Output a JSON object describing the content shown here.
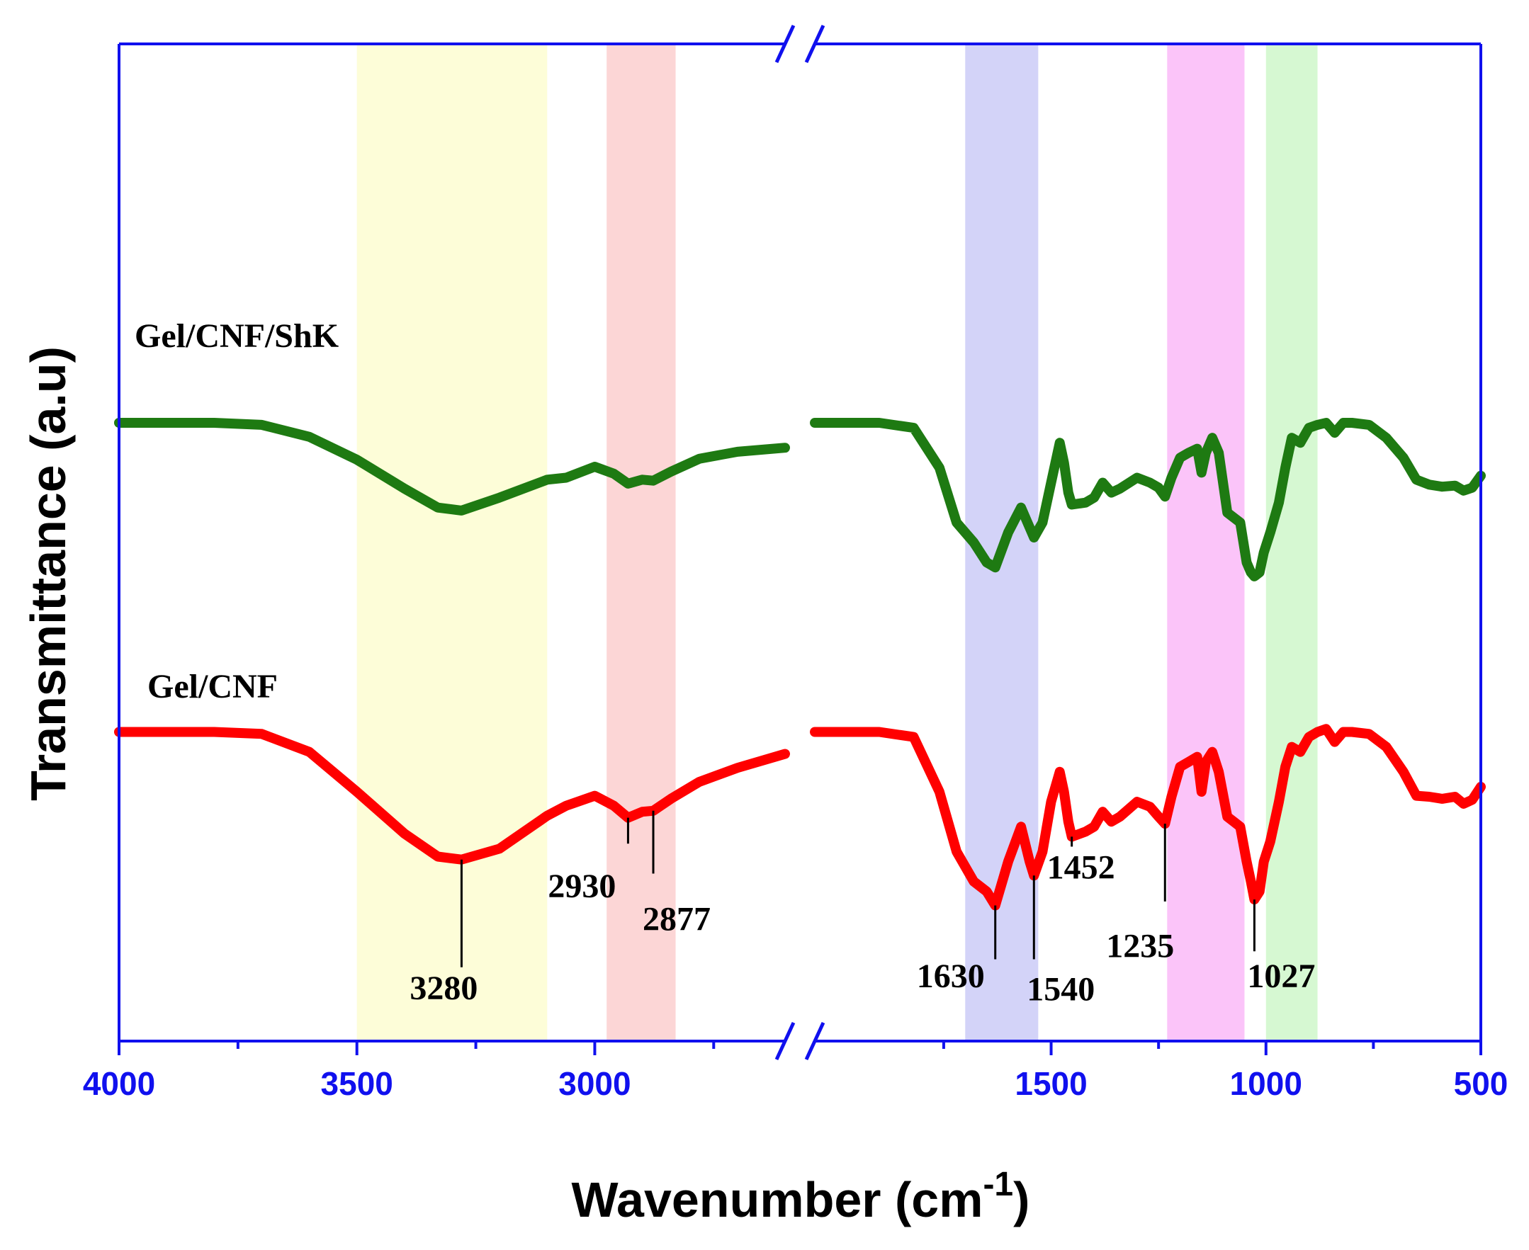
{
  "chart_data": {
    "type": "line",
    "title": "",
    "xlabel": "Wavenumber (cm",
    "xlabel_sup": "-1",
    "xlabel_close": ")",
    "ylabel": "Transmittance (a.u)",
    "x_reversed": true,
    "x_broken": true,
    "x_segments": [
      {
        "range": [
          4000,
          2600
        ],
        "ticks": [
          4000,
          3500,
          3000
        ],
        "minor_ticks": [
          3750,
          3250,
          2750
        ]
      },
      {
        "range": [
          2050,
          500
        ],
        "ticks": [
          1500,
          1000,
          500
        ],
        "minor_ticks": [
          1750,
          1250,
          750
        ]
      }
    ],
    "tick_labels": [
      "4000",
      "3500",
      "3000",
      "1500",
      "1000",
      "500"
    ],
    "y_range": [
      0,
      100
    ],
    "colors": {
      "axis": "#1010ee",
      "Gel/CNF/ShK": "#1e7a12",
      "Gel/CNF": "#ff0000"
    },
    "bands": [
      {
        "from": 3500,
        "to": 3100,
        "color": "#fdfdd8"
      },
      {
        "from": 2975,
        "to": 2830,
        "color": "#fcd6d6"
      },
      {
        "from": 1700,
        "to": 1530,
        "color": "#d3d3f8"
      },
      {
        "from": 1230,
        "to": 1050,
        "color": "#fbc4f9"
      },
      {
        "from": 1000,
        "to": 880,
        "color": "#d6f8d2"
      }
    ],
    "series": [
      {
        "name": "Gel/CNF/ShK",
        "label": "Gel/CNF/ShK",
        "segments": [
          [
            [
              4000,
              62
            ],
            [
              3900,
              62
            ],
            [
              3800,
              62
            ],
            [
              3700,
              61.8
            ],
            [
              3600,
              60.6
            ],
            [
              3500,
              58.3
            ],
            [
              3400,
              55.4
            ],
            [
              3330,
              53.5
            ],
            [
              3280,
              53.2
            ],
            [
              3200,
              54.5
            ],
            [
              3100,
              56.3
            ],
            [
              3060,
              56.5
            ],
            [
              3000,
              57.6
            ],
            [
              2960,
              56.9
            ],
            [
              2930,
              55.9
            ],
            [
              2900,
              56.3
            ],
            [
              2877,
              56.2
            ],
            [
              2840,
              57.1
            ],
            [
              2780,
              58.4
            ],
            [
              2700,
              59.1
            ],
            [
              2600,
              59.5
            ]
          ],
          [
            [
              2050,
              62
            ],
            [
              1900,
              62
            ],
            [
              1820,
              61.5
            ],
            [
              1760,
              57.5
            ],
            [
              1720,
              52
            ],
            [
              1680,
              50
            ],
            [
              1650,
              48
            ],
            [
              1630,
              47.5
            ],
            [
              1600,
              51
            ],
            [
              1570,
              53.5
            ],
            [
              1550,
              51.5
            ],
            [
              1540,
              50.5
            ],
            [
              1520,
              52
            ],
            [
              1500,
              56
            ],
            [
              1480,
              60
            ],
            [
              1470,
              58
            ],
            [
              1460,
              55
            ],
            [
              1452,
              53.8
            ],
            [
              1420,
              54
            ],
            [
              1400,
              54.5
            ],
            [
              1380,
              56
            ],
            [
              1360,
              55
            ],
            [
              1340,
              55.4
            ],
            [
              1300,
              56.5
            ],
            [
              1270,
              56
            ],
            [
              1250,
              55.5
            ],
            [
              1235,
              54.6
            ],
            [
              1220,
              56.5
            ],
            [
              1200,
              58.5
            ],
            [
              1180,
              59
            ],
            [
              1160,
              59.4
            ],
            [
              1150,
              57
            ],
            [
              1140,
              59
            ],
            [
              1125,
              60.5
            ],
            [
              1110,
              59
            ],
            [
              1090,
              53
            ],
            [
              1075,
              52.5
            ],
            [
              1060,
              52
            ],
            [
              1045,
              48
            ],
            [
              1035,
              47
            ],
            [
              1027,
              46.6
            ],
            [
              1015,
              47
            ],
            [
              1005,
              49
            ],
            [
              990,
              51
            ],
            [
              970,
              54
            ],
            [
              955,
              57.5
            ],
            [
              940,
              60.5
            ],
            [
              920,
              60
            ],
            [
              900,
              61.5
            ],
            [
              880,
              61.8
            ],
            [
              860,
              62
            ],
            [
              840,
              61
            ],
            [
              820,
              62
            ],
            [
              800,
              62
            ],
            [
              760,
              61.8
            ],
            [
              720,
              60.5
            ],
            [
              680,
              58.5
            ],
            [
              650,
              56.3
            ],
            [
              620,
              55.8
            ],
            [
              590,
              55.6
            ],
            [
              560,
              55.7
            ],
            [
              540,
              55.2
            ],
            [
              520,
              55.5
            ],
            [
              500,
              56.7
            ]
          ]
        ]
      },
      {
        "name": "Gel/CNF",
        "label": "Gel/CNF",
        "segments": [
          [
            [
              4000,
              31
            ],
            [
              3900,
              31
            ],
            [
              3800,
              31
            ],
            [
              3700,
              30.8
            ],
            [
              3600,
              29
            ],
            [
              3500,
              25
            ],
            [
              3400,
              20.8
            ],
            [
              3330,
              18.5
            ],
            [
              3280,
              18.2
            ],
            [
              3200,
              19.3
            ],
            [
              3100,
              22.6
            ],
            [
              3060,
              23.6
            ],
            [
              3000,
              24.6
            ],
            [
              2960,
              23.6
            ],
            [
              2930,
              22.4
            ],
            [
              2900,
              23
            ],
            [
              2877,
              23.1
            ],
            [
              2840,
              24.3
            ],
            [
              2780,
              26
            ],
            [
              2700,
              27.4
            ],
            [
              2600,
              28.8
            ]
          ],
          [
            [
              2050,
              31
            ],
            [
              1900,
              31
            ],
            [
              1820,
              30.5
            ],
            [
              1760,
              25
            ],
            [
              1720,
              19
            ],
            [
              1680,
              16
            ],
            [
              1650,
              15
            ],
            [
              1630,
              13.6
            ],
            [
              1600,
              18
            ],
            [
              1570,
              21.5
            ],
            [
              1550,
              18
            ],
            [
              1540,
              16.6
            ],
            [
              1520,
              19
            ],
            [
              1500,
              24
            ],
            [
              1480,
              27
            ],
            [
              1470,
              25
            ],
            [
              1460,
              22
            ],
            [
              1452,
              20.5
            ],
            [
              1420,
              21
            ],
            [
              1400,
              21.5
            ],
            [
              1380,
              23
            ],
            [
              1360,
              22
            ],
            [
              1340,
              22.5
            ],
            [
              1300,
              24
            ],
            [
              1270,
              23.5
            ],
            [
              1250,
              22.5
            ],
            [
              1235,
              21.8
            ],
            [
              1220,
              24.5
            ],
            [
              1200,
              27.5
            ],
            [
              1180,
              28
            ],
            [
              1160,
              28.5
            ],
            [
              1150,
              25
            ],
            [
              1140,
              28
            ],
            [
              1125,
              29
            ],
            [
              1110,
              27
            ],
            [
              1090,
              22.5
            ],
            [
              1075,
              22
            ],
            [
              1060,
              21.5
            ],
            [
              1045,
              18
            ],
            [
              1035,
              16
            ],
            [
              1027,
              14.2
            ],
            [
              1015,
              15
            ],
            [
              1005,
              18
            ],
            [
              990,
              20
            ],
            [
              970,
              24
            ],
            [
              955,
              27.5
            ],
            [
              940,
              29.5
            ],
            [
              920,
              29
            ],
            [
              900,
              30.5
            ],
            [
              880,
              31
            ],
            [
              860,
              31.3
            ],
            [
              840,
              30
            ],
            [
              820,
              31
            ],
            [
              800,
              31
            ],
            [
              760,
              30.8
            ],
            [
              720,
              29.5
            ],
            [
              680,
              27
            ],
            [
              650,
              24.6
            ],
            [
              620,
              24.5
            ],
            [
              590,
              24.3
            ],
            [
              560,
              24.5
            ],
            [
              540,
              23.8
            ],
            [
              520,
              24.2
            ],
            [
              500,
              25.5
            ]
          ]
        ]
      }
    ],
    "annotations": [
      {
        "label": "3280",
        "x": 3280,
        "y_from": 18.2,
        "y_to": 7.4,
        "text_anchor": "middle",
        "text_y": 4.2,
        "text_dx": -25
      },
      {
        "label": "2930",
        "x": 2930,
        "y_from": 22.4,
        "y_to": 19.8,
        "text_anchor": "middle",
        "text_y": 14.4,
        "text_dx": -65
      },
      {
        "label": "2877",
        "x": 2877,
        "y_from": 23.1,
        "y_to": 16.8,
        "text_anchor": "start",
        "text_y": 11.1,
        "text_dx": -15
      },
      {
        "label": "1630",
        "x": 1630,
        "y_from": 13.6,
        "y_to": 8.2,
        "text_anchor": "end",
        "text_y": 5.4,
        "text_dx": -15
      },
      {
        "label": "1540",
        "x": 1540,
        "y_from": 16.6,
        "y_to": 8.2,
        "text_anchor": "start",
        "text_y": 4.1,
        "text_dx": -10
      },
      {
        "label": "1452",
        "x": 1452,
        "y_from": 20.5,
        "y_to": 19.5,
        "text_anchor": "start",
        "text_y": 16.3,
        "text_dx": -35
      },
      {
        "label": "1235",
        "x": 1235,
        "y_from": 21.8,
        "y_to": 14.0,
        "text_anchor": "middle",
        "text_y": 8.4,
        "text_dx": -35
      },
      {
        "label": "1027",
        "x": 1027,
        "y_from": 14.2,
        "y_to": 9.0,
        "text_anchor": "start",
        "text_y": 5.4,
        "text_dx": -10
      }
    ]
  }
}
